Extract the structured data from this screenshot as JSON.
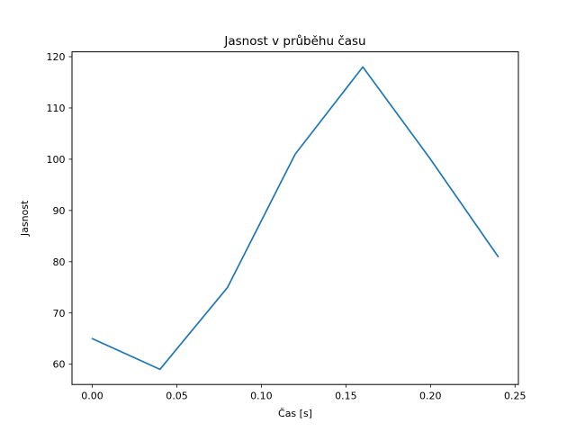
{
  "chart_data": {
    "type": "line",
    "title": "Jasnost v průběhu času",
    "xlabel": "Čas [s]",
    "ylabel": "Jasnost",
    "x": [
      0.0,
      0.04,
      0.08,
      0.12,
      0.16,
      0.2,
      0.24
    ],
    "y": [
      65,
      59,
      75,
      101,
      118,
      100,
      81
    ],
    "series_name": "Jasnost",
    "xlim": [
      -0.012,
      0.252
    ],
    "ylim": [
      56.05,
      120.95
    ],
    "xticks": {
      "values": [
        0.0,
        0.05,
        0.1,
        0.15,
        0.2,
        0.25
      ],
      "labels": [
        "0.00",
        "0.05",
        "0.10",
        "0.15",
        "0.20",
        "0.25"
      ]
    },
    "yticks": {
      "values": [
        60,
        70,
        80,
        90,
        100,
        110,
        120
      ],
      "labels": [
        "60",
        "70",
        "80",
        "90",
        "100",
        "110",
        "120"
      ]
    },
    "grid": false,
    "legend": null,
    "colors": {
      "line": "#1f77b4",
      "spine": "#000000",
      "text": "#000000",
      "background": "#ffffff"
    }
  }
}
